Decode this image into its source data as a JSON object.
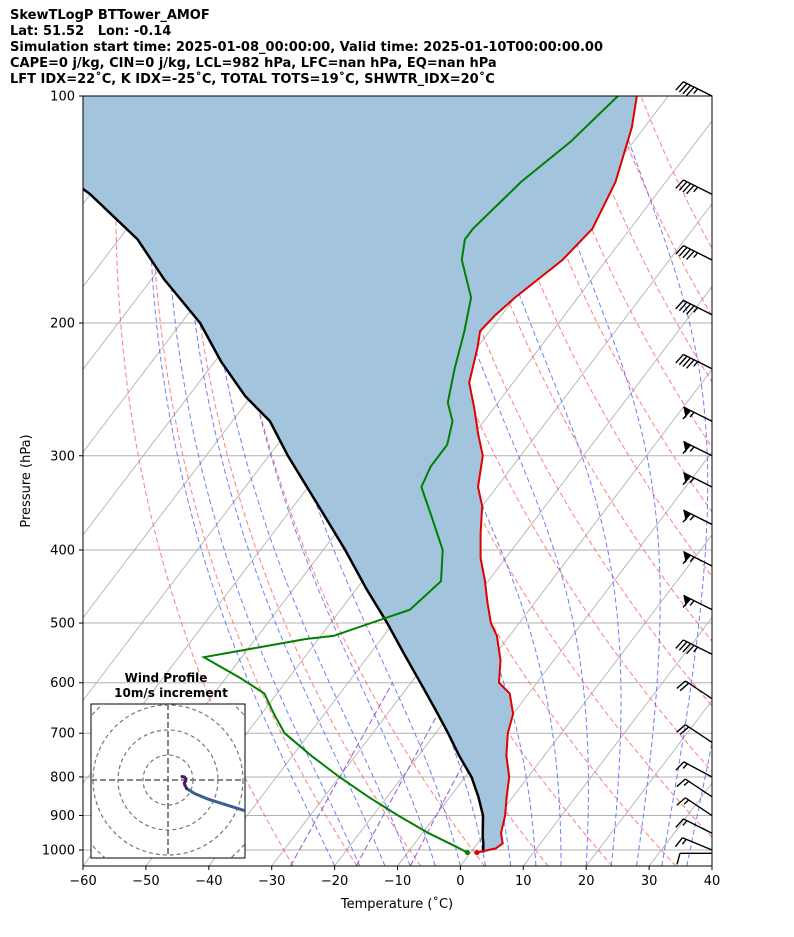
{
  "header": {
    "line1": "SkewTLogP BTTower_AMOF",
    "line2": "Lat: 51.52   Lon: -0.14",
    "line3": "Simulation start time: 2025-01-08_00:00:00, Valid time: 2025-01-10T00:00:00.00",
    "line4": "CAPE=0 j/kg, CIN=0 j/kg, LCL=982 hPa, LFC=nan hPa, EQ=nan hPa",
    "line5": "LFT IDX=22˚C, K IDX=-25˚C, TOTAL TOTS=19˚C, SHWTR_IDX=20˚C"
  },
  "colors": {
    "temperature": "#e00000",
    "dewpoint": "#008000",
    "parcel": "#000000",
    "shade": "#a2c4dd",
    "dry_adiabat": "#ff6666",
    "moist_adiabat": "#5566ff",
    "mixing_ratio": "#9955cc",
    "isotherm": "#aaaaaa",
    "hodograph": "#3a5f8f"
  },
  "chart_data": [
    {
      "type": "line",
      "subtype": "skew-T log-P",
      "xlabel": "Temperature (˚C)",
      "ylabel": "Pressure (hPa)",
      "xlim": [
        -60,
        40
      ],
      "ylim": [
        1050,
        100
      ],
      "y_scale": "log",
      "x_ticks": [
        "−60",
        "−50",
        "−40",
        "−30",
        "−20",
        "−10",
        "0",
        "10",
        "20",
        "30",
        "40"
      ],
      "y_ticks": [
        "100",
        "200",
        "300",
        "400",
        "500",
        "600",
        "700",
        "800",
        "900",
        "1000"
      ],
      "grid": true,
      "series": [
        {
          "name": "temperature",
          "points": [
            [
              1.0,
              1008
            ],
            [
              3.5,
              995
            ],
            [
              4.0,
              980
            ],
            [
              2.5,
              950
            ],
            [
              1.0,
              900
            ],
            [
              -1.0,
              850
            ],
            [
              -3.0,
              800
            ],
            [
              -6.0,
              750
            ],
            [
              -8.5,
              700
            ],
            [
              -10.0,
              660
            ],
            [
              -13.0,
              620
            ],
            [
              -16.0,
              600
            ],
            [
              -18.5,
              560
            ],
            [
              -22.0,
              520
            ],
            [
              -24.5,
              500
            ],
            [
              -27.5,
              470
            ],
            [
              -30.5,
              440
            ],
            [
              -34.0,
              410
            ],
            [
              -37.0,
              380
            ],
            [
              -40.0,
              350
            ],
            [
              -43.0,
              330
            ],
            [
              -46.0,
              300
            ],
            [
              -49.5,
              280
            ],
            [
              -53.0,
              260
            ],
            [
              -57.0,
              240
            ],
            [
              -60.0,
              215
            ],
            [
              -61.5,
              205
            ],
            [
              -61.0,
              195
            ],
            [
              -60.0,
              185
            ],
            [
              -57.0,
              165
            ],
            [
              -56.0,
              150
            ],
            [
              -58.0,
              130
            ],
            [
              -62.0,
              110
            ],
            [
              -65.0,
              100
            ]
          ]
        },
        {
          "name": "dewpoint",
          "points": [
            [
              -0.5,
              1008
            ],
            [
              -3.0,
              990
            ],
            [
              -9.0,
              950
            ],
            [
              -16.0,
              900
            ],
            [
              -23.0,
              850
            ],
            [
              -30.0,
              800
            ],
            [
              -37.0,
              750
            ],
            [
              -44.0,
              700
            ],
            [
              -48.0,
              660
            ],
            [
              -52.0,
              620
            ],
            [
              -58.0,
              590
            ],
            [
              -66.0,
              555
            ],
            [
              -52.0,
              525
            ],
            [
              -48.0,
              520
            ],
            [
              -39.0,
              480
            ],
            [
              -37.5,
              440
            ],
            [
              -41.0,
              400
            ],
            [
              -47.0,
              360
            ],
            [
              -52.0,
              330
            ],
            [
              -53.0,
              310
            ],
            [
              -53.0,
              290
            ],
            [
              -55.0,
              270
            ],
            [
              -58.0,
              255
            ],
            [
              -61.0,
              230
            ],
            [
              -64.0,
              205
            ],
            [
              -67.0,
              185
            ],
            [
              -73.0,
              165
            ],
            [
              -75.0,
              155
            ],
            [
              -75.0,
              150
            ],
            [
              -73.0,
              130
            ],
            [
              -70.0,
              115
            ],
            [
              -68.0,
              100
            ]
          ]
        },
        {
          "name": "parcel",
          "points": [
            [
              2.0,
              1008
            ],
            [
              1.0,
              982
            ],
            [
              0.0,
              960
            ],
            [
              -2.5,
              900
            ],
            [
              -5.5,
              850
            ],
            [
              -9.0,
              800
            ],
            [
              -13.5,
              750
            ],
            [
              -18.0,
              700
            ],
            [
              -23.0,
              650
            ],
            [
              -28.5,
              600
            ],
            [
              -34.5,
              550
            ],
            [
              -41.0,
              500
            ],
            [
              -48.5,
              450
            ],
            [
              -56.5,
              400
            ],
            [
              -66.0,
              350
            ],
            [
              -77.0,
              300
            ],
            [
              -84.0,
              270
            ],
            [
              -91.0,
              250
            ],
            [
              -99.0,
              225
            ],
            [
              -107.0,
              200
            ],
            [
              -118.0,
              175
            ],
            [
              -127.0,
              155
            ],
            [
              -140.0,
              135
            ],
            [
              -153.0,
              120
            ],
            [
              -165.0,
              108
            ],
            [
              -175.0,
              100
            ]
          ]
        }
      ],
      "wind_barbs": [
        {
          "p": 100,
          "u": 40,
          "v": -20
        },
        {
          "p": 135,
          "u": 40,
          "v": -20
        },
        {
          "p": 165,
          "u": 40,
          "v": -20
        },
        {
          "p": 195,
          "u": 40,
          "v": -20
        },
        {
          "p": 230,
          "u": 40,
          "v": -20
        },
        {
          "p": 270,
          "u": 60,
          "v": -30
        },
        {
          "p": 300,
          "u": 60,
          "v": -30
        },
        {
          "p": 330,
          "u": 60,
          "v": -30
        },
        {
          "p": 370,
          "u": 60,
          "v": -30
        },
        {
          "p": 420,
          "u": 60,
          "v": -30
        },
        {
          "p": 480,
          "u": 60,
          "v": -30
        },
        {
          "p": 550,
          "u": 40,
          "v": -20
        },
        {
          "p": 630,
          "u": 15,
          "v": -10
        },
        {
          "p": 720,
          "u": 15,
          "v": -10
        },
        {
          "p": 800,
          "u": 15,
          "v": -8
        },
        {
          "p": 850,
          "u": 12,
          "v": -8
        },
        {
          "p": 900,
          "u": 12,
          "v": -8
        },
        {
          "p": 950,
          "u": 12,
          "v": -6
        },
        {
          "p": 1000,
          "u": 12,
          "v": -5
        },
        {
          "p": 1010,
          "u": 8,
          "v": 0
        }
      ]
    },
    {
      "type": "line",
      "subtype": "hodograph",
      "title": "Wind Profile",
      "subtitle": "10m/s increment",
      "ring_increment": 10,
      "rings": 3,
      "points": [
        [
          0.5,
          1.5
        ],
        [
          1.5,
          1.3
        ],
        [
          2.2,
          0.5
        ],
        [
          2.0,
          -0.5
        ],
        [
          1.5,
          -1.5
        ],
        [
          1.8,
          -2.5
        ],
        [
          2.5,
          -3.8
        ],
        [
          6,
          -6
        ],
        [
          12,
          -8.5
        ],
        [
          20,
          -11
        ],
        [
          28,
          -13.5
        ],
        [
          34,
          -15
        ]
      ]
    }
  ]
}
